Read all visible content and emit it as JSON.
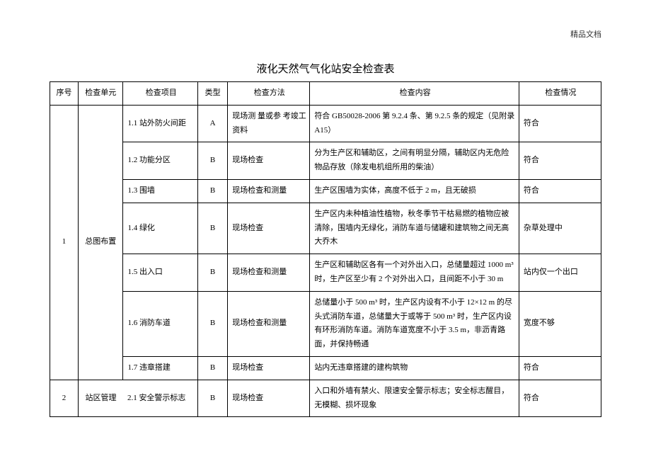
{
  "header_right": "精品文档",
  "title": "液化天然气气化站安全检查表",
  "columns": {
    "seq": "序号",
    "unit": "检查单元",
    "item": "检查项目",
    "type": "类型",
    "method": "检查方法",
    "content": "检查内容",
    "status": "检查情况"
  },
  "rows": [
    {
      "seq": "1",
      "unit": "总图布置",
      "item": "1.1 站外防火间距",
      "type": "A",
      "method": "现场测 量或参 考竣工资料",
      "content": "符合 GB50028-2006 第 9.2.4 条、第 9.2.5 条的规定（见附录 A15）",
      "status": "符合"
    },
    {
      "item": "1.2 功能分区",
      "type": "B",
      "method": "现场检查",
      "content": "分为生产区和辅助区，之间有明显分隔，辅助区内无危险物品存放（除发电机组所用的柴油）",
      "status": "符合"
    },
    {
      "item": "1.3 围墙",
      "type": "B",
      "method": "现场检查和测量",
      "content": "生产区围墙为实体，高度不低于 2 m，且无破损",
      "status": "符合"
    },
    {
      "item": "1.4 绿化",
      "type": "B",
      "method": "现场检查",
      "content": "生产区内未种植油性植物，秋冬季节干枯易燃的植物应被清除，围墙内无绿化，消防车道与储罐和建筑物之间无高大乔木",
      "status": "杂草处理中"
    },
    {
      "item": "1.5 出入口",
      "type": "B",
      "method": "现场检查和测量",
      "content": "生产区和辅助区各有一个对外出入口，总储量超过 1000 m³时，生产区至少有 2 个对外出入口，且间距不小于 30 m",
      "status": "站内仅一个出口"
    },
    {
      "item": "1.6 消防车道",
      "type": "B",
      "method": "现场检查和测量",
      "content": "总储量小于 500 m³ 时，生产区内设有不小于 12×12 m 的尽头式消防车道，总储量大于或等于 500 m³ 时，生产区内设有环形消防车道。消防车道宽度不小于 3.5 m，非沥青路面，并保持畅通",
      "status": "宽度不够"
    },
    {
      "item": "1.7 违章搭建",
      "type": "B",
      "method": "现场检查",
      "content": "站内无违章搭建的建构筑物",
      "status": "符合"
    },
    {
      "seq": "2",
      "unit": "站区管理",
      "item": "2.1 安全警示标志",
      "type": "B",
      "method": "现场检查",
      "content": "入口和外墙有禁火、限速安全警示标志；安全标志醒目，无模糊、损坏现象",
      "status": "符合"
    }
  ]
}
